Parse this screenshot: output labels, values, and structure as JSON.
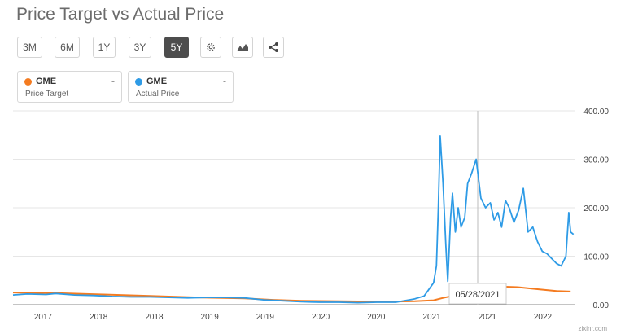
{
  "title": "Price Target vs Actual Price",
  "toolbar": {
    "ranges": [
      "3M",
      "6M",
      "1Y",
      "3Y",
      "5Y"
    ],
    "active_range": "5Y",
    "icons": [
      "gear-icon",
      "area-chart-icon",
      "share-icon"
    ]
  },
  "legend": [
    {
      "ticker": "GME",
      "label": "Price Target",
      "value": "-",
      "color": "#f47b20"
    },
    {
      "ticker": "GME",
      "label": "Actual Price",
      "value": "-",
      "color": "#2e9be6"
    }
  ],
  "tooltip": {
    "date": "05/28/2021"
  },
  "watermark": "zixinr.com",
  "chart_data": {
    "type": "line",
    "xlabels": [
      "2017",
      "2018",
      "2018",
      "2019",
      "2019",
      "2020",
      "2020",
      "2021",
      "2021",
      "2022"
    ],
    "ylim": [
      0,
      400
    ],
    "yticks": [
      "0.00",
      "100.00",
      "200.00",
      "300.00",
      "400.00"
    ],
    "grid": true,
    "series": [
      {
        "name": "Price Target",
        "color": "#f47b20",
        "x": [
          2016.55,
          2017.0,
          2017.5,
          2018.0,
          2018.5,
          2019.0,
          2019.3,
          2019.6,
          2020.0,
          2020.5,
          2020.8,
          2021.0,
          2021.1,
          2021.3,
          2021.6,
          2021.9,
          2022.1,
          2022.3,
          2022.45
        ],
        "values": [
          25,
          24,
          21,
          18,
          15,
          13,
          10,
          8,
          7,
          6,
          7,
          9,
          14,
          22,
          38,
          36,
          32,
          28,
          27
        ]
      },
      {
        "name": "Actual Price",
        "color": "#2e9be6",
        "x": [
          2016.55,
          2016.7,
          2016.9,
          2017.0,
          2017.2,
          2017.4,
          2017.6,
          2017.8,
          2018.0,
          2018.2,
          2018.4,
          2018.6,
          2018.8,
          2019.0,
          2019.2,
          2019.4,
          2019.6,
          2019.8,
          2020.0,
          2020.2,
          2020.4,
          2020.6,
          2020.8,
          2020.9,
          2021.0,
          2021.03,
          2021.05,
          2021.07,
          2021.1,
          2021.13,
          2021.15,
          2021.18,
          2021.2,
          2021.23,
          2021.26,
          2021.29,
          2021.33,
          2021.36,
          2021.4,
          2021.45,
          2021.5,
          2021.55,
          2021.6,
          2021.64,
          2021.68,
          2021.72,
          2021.76,
          2021.8,
          2021.85,
          2021.9,
          2021.95,
          2022.0,
          2022.05,
          2022.1,
          2022.15,
          2022.2,
          2022.25,
          2022.3,
          2022.35,
          2022.4,
          2022.43,
          2022.45,
          2022.48
        ],
        "values": [
          20,
          22,
          21,
          23,
          20,
          19,
          17,
          16,
          16,
          15,
          14,
          15,
          15,
          14,
          10,
          8,
          6,
          5,
          5,
          4,
          5,
          5,
          12,
          18,
          45,
          80,
          200,
          348,
          250,
          120,
          48,
          180,
          230,
          150,
          200,
          160,
          180,
          250,
          270,
          300,
          220,
          200,
          210,
          175,
          190,
          160,
          215,
          200,
          170,
          195,
          240,
          150,
          160,
          130,
          110,
          105,
          95,
          85,
          80,
          100,
          190,
          150,
          145
        ]
      }
    ]
  }
}
